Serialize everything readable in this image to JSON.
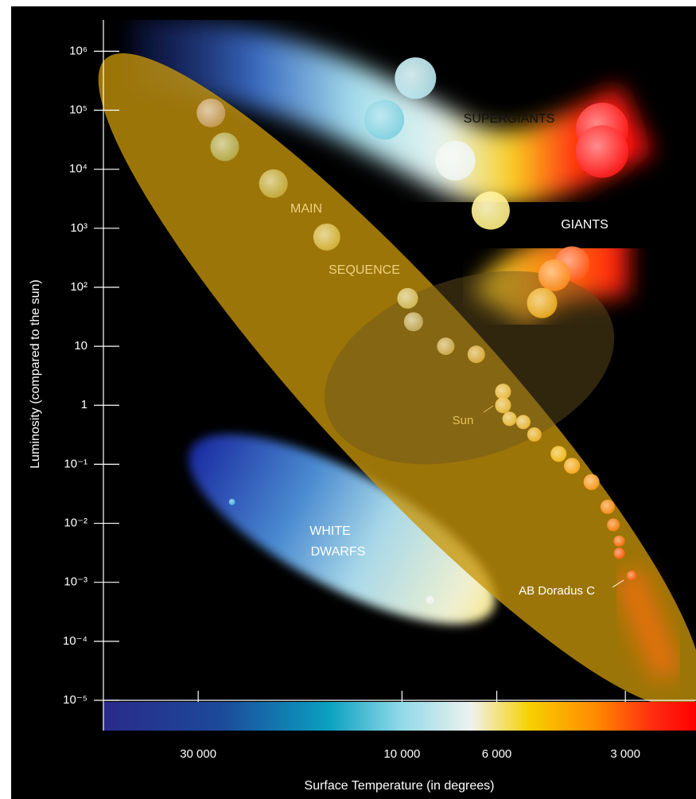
{
  "chart_data": {
    "type": "scatter",
    "ylabel": "Luminosity (compared to the sun)",
    "xlabel": "Surface Temperature (in degrees)",
    "log_x": true,
    "log_y": true,
    "x_reversed": true,
    "xlim": [
      50000,
      2050
    ],
    "ylim": [
      1e-05,
      3000000
    ],
    "xticks": [
      {
        "value": 30000,
        "label": "30 000"
      },
      {
        "value": 10000,
        "label": "10 000"
      },
      {
        "value": 6000,
        "label": "6 000"
      },
      {
        "value": 3000,
        "label": "3 000"
      }
    ],
    "yticks": [
      {
        "value": 1000000,
        "label": "10⁶"
      },
      {
        "value": 100000,
        "label": "10⁵"
      },
      {
        "value": 10000,
        "label": "10⁴"
      },
      {
        "value": 1000,
        "label": "10³"
      },
      {
        "value": 100,
        "label": "10²"
      },
      10,
      1,
      {
        "value": 0.1,
        "label": "10⁻¹"
      },
      {
        "value": 0.01,
        "label": "10⁻²"
      },
      {
        "value": 0.001,
        "label": "10⁻³"
      },
      {
        "value": 0.0001,
        "label": "10⁻⁴"
      },
      {
        "value": 1e-05,
        "label": "10⁻⁵"
      }
    ],
    "annotations": [
      "SUPERGIANTS",
      "GIANTS",
      "MAIN",
      "SEQUENCE",
      "WHITE",
      "DWARFS",
      "Sun",
      "AB Doradus C"
    ],
    "series": [
      {
        "color": "#c9a040",
        "x": [
          28000,
          26000,
          20000,
          15000,
          9700,
          9400,
          7900,
          6700,
          5800,
          5800,
          5600,
          5200,
          4900,
          4300,
          4000,
          3600,
          3300,
          3200,
          3100,
          3100,
          2900
        ],
        "values": [
          90000,
          24000,
          5700,
          710,
          65,
          26,
          10,
          7.3,
          1.7,
          1,
          0.59,
          0.52,
          0.32,
          0.15,
          0.094,
          0.05,
          0.019,
          0.0094,
          0.005,
          0.0031,
          0.0013
        ],
        "colors": [
          "#c9a060",
          "#b8b050",
          "#c8b040",
          "#d8b840",
          "#d8c060",
          "#c8b060",
          "#d0b050",
          "#e0b040",
          "#f0c040",
          "#f0c040",
          "#f0c040",
          "#f0c040",
          "#f0b830",
          "#f8c020",
          "#ffb020",
          "#ffa020",
          "#ff9018",
          "#ff8010",
          "#ff7010",
          "#ff6010",
          "#ff6010"
        ]
      },
      {
        "color": "#ffffff",
        "x": [
          9300,
          11000,
          7500,
          6200,
          3400,
          3400,
          4000,
          4400,
          4700
        ],
        "values": [
          350000,
          69000,
          14000,
          2000,
          48000,
          20000,
          250,
          160,
          54
        ],
        "colors": [
          "#b8e8f0",
          "#7fd0e0",
          "#f0f4f0",
          "#fff080",
          "#ff2020",
          "#ff2020",
          "#ff6020",
          "#ff9020",
          "#f0b020"
        ]
      },
      {
        "color": "#dddddd",
        "x": [
          25000,
          8600
        ],
        "values": [
          0.023,
          0.0005
        ],
        "colors": [
          "#4fb0e0",
          "#f0f0f0"
        ]
      }
    ]
  }
}
